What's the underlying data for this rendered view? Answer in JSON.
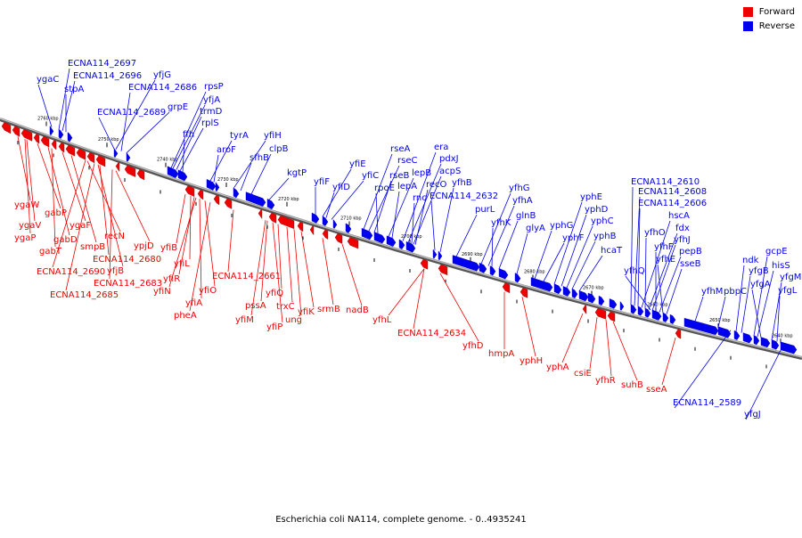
{
  "colors": {
    "forward": "#ee0000",
    "reverse": "#0000ee",
    "forward_dark": "#990000",
    "reverse_dark": "#000088",
    "axis": "#777777",
    "tick": "#000000"
  },
  "legend": {
    "forward": "Forward",
    "reverse": "Reverse"
  },
  "caption": "Escherichia coli NA114, complete genome. - 0..4935241",
  "ticks": [
    "2760 kbp",
    "2750 kbp",
    "2740 kbp",
    "2730 kbp",
    "2720 kbp",
    "2710 kbp",
    "2700 kbp",
    "2690 kbp",
    "2680 kbp",
    "2670 kbp",
    "2660 kbp",
    "2650 kbp",
    "2640 kbp"
  ],
  "labels_reverse": [
    "ygaC",
    "ECNA114_2697",
    "ECNA114_2696",
    "stpA",
    "yfjG",
    "ECNA114_2686",
    "ECNA114_2689",
    "grpE",
    "rpsP",
    "yfjA",
    "trmD",
    "rplS",
    "ffh",
    "tyrA",
    "aroF",
    "yfiH",
    "sfhB",
    "clpB",
    "kgtP",
    "yfiF",
    "yfiE",
    "yfiD",
    "yfiC",
    "rseA",
    "rseC",
    "rseB",
    "rpoE",
    "lepB",
    "lepA",
    "era",
    "pdxJ",
    "acpS",
    "recO",
    "rnc",
    "ECNA114_2632",
    "yfhB",
    "purL",
    "yfhG",
    "yfhA",
    "yfhK",
    "glnB",
    "glyA",
    "yphG",
    "yphF",
    "yphE",
    "yphD",
    "yphC",
    "yphB",
    "hcaT",
    "ECNA114_2610",
    "ECNA114_2608",
    "ECNA114_2606",
    "hscA",
    "yfhO",
    "fdx",
    "yfhJ",
    "yfhF",
    "pepB",
    "yfhE",
    "sseB",
    "yfhQ",
    "yfhM",
    "pbpC",
    "ndk",
    "yfgB",
    "gcpE",
    "hisS",
    "yfgA",
    "yfgM",
    "yfgL",
    "ECNA114_2589",
    "yfgJ"
  ],
  "labels_forward": [
    "ygaW",
    "gabP",
    "ygaV",
    "ygaP",
    "gabD",
    "ygaF",
    "gabT",
    "smpB",
    "recN",
    "ECNA114_2680",
    "ypjD",
    "ECNA114_2690",
    "yfjB",
    "ECNA114_2683",
    "ECNA114_2685",
    "yfiB",
    "yfiL",
    "yfiR",
    "yfiN",
    "yfiA",
    "yfiO",
    "pheA",
    "ECNA114_2661",
    "pssA",
    "yfiM",
    "yfiQ",
    "yfiP",
    "trxC",
    "ung",
    "yfiK",
    "srmB",
    "nadB",
    "yfhL",
    "ECNA114_2634",
    "yfhD",
    "hmpA",
    "yphH",
    "yphA",
    "csiE",
    "yfhR",
    "suhB",
    "sseA"
  ]
}
